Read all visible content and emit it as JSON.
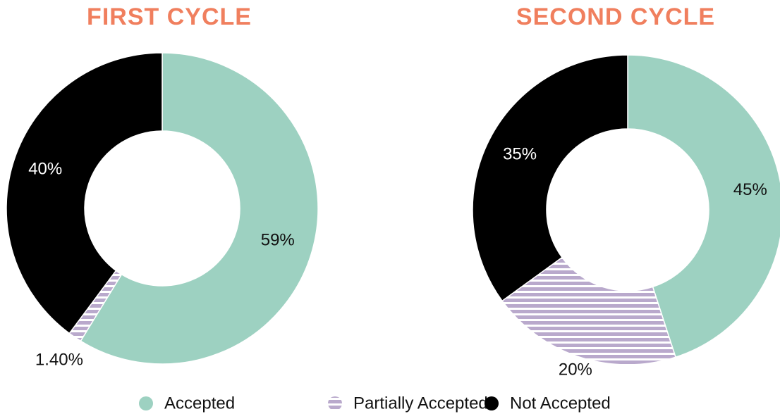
{
  "chart_data": [
    {
      "type": "pie",
      "title": "FIRST CYCLE",
      "categories": [
        "Accepted",
        "Partially Accepted",
        "Not Accepted"
      ],
      "values": [
        59,
        1.4,
        40
      ],
      "value_labels": [
        "59%",
        "1.40%",
        "40%"
      ],
      "colors": [
        "#9dd1c1",
        "#b9a9cc",
        "#000000"
      ]
    },
    {
      "type": "pie",
      "title": "SECOND CYCLE",
      "categories": [
        "Accepted",
        "Partially Accepted",
        "Not Accepted"
      ],
      "values": [
        45,
        20,
        35
      ],
      "value_labels": [
        "45%",
        "20%",
        "35%"
      ],
      "colors": [
        "#9dd1c1",
        "#b9a9cc",
        "#000000"
      ]
    }
  ]
}
